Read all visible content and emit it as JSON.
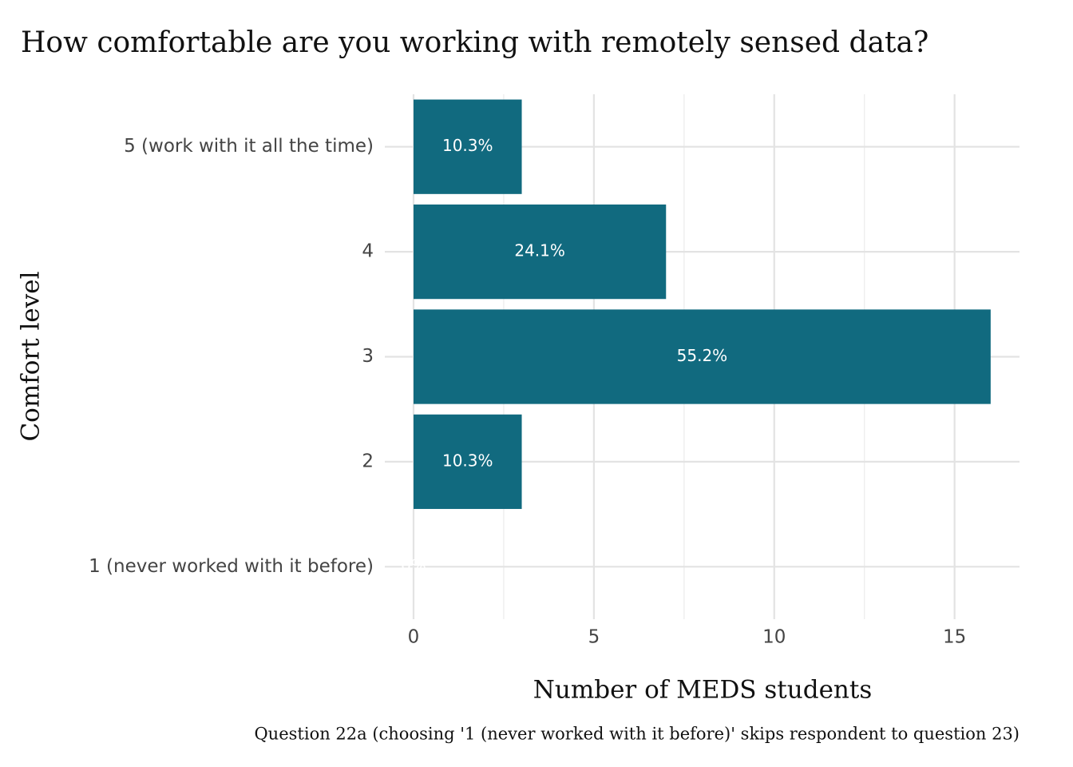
{
  "chart_data": {
    "type": "bar",
    "orientation": "horizontal",
    "title": "How comfortable are you working with remotely sensed data?",
    "x_label": "Number of MEDS students",
    "y_label": "Comfort level",
    "caption": "Question 22a (choosing '1 (never worked with it before)' skips respondent to question 23)",
    "categories": [
      "5 (work with it all the time)",
      "4",
      "3",
      "2",
      "1 (never worked with it before)"
    ],
    "values": [
      3,
      7,
      16,
      3,
      0
    ],
    "value_labels": [
      "10.3%",
      "24.1%",
      "55.2%",
      "10.3%",
      "0%"
    ],
    "color": "#116a7f",
    "xlim": [
      0,
      16.8
    ],
    "xticks": [
      0,
      5,
      10,
      15
    ],
    "grid": true
  }
}
